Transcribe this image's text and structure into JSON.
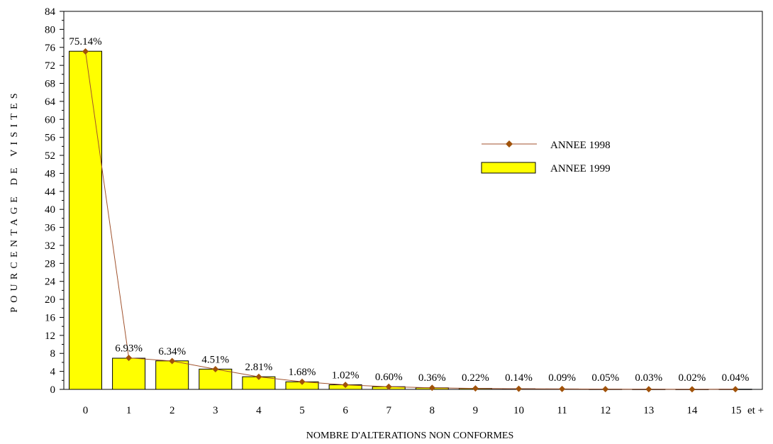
{
  "chart_data": {
    "type": "bar",
    "categories": [
      "0",
      "1",
      "2",
      "3",
      "4",
      "5",
      "6",
      "7",
      "8",
      "9",
      "10",
      "11",
      "12",
      "13",
      "14",
      "15"
    ],
    "category_suffix_last": "et +",
    "xlabel": "NOMBRE D'ALTERATIONS NON CONFORMES",
    "ylabel": "POURCENTAGE DE VISITES",
    "ylim": [
      0,
      84
    ],
    "yticks": [
      0,
      4,
      8,
      12,
      16,
      20,
      24,
      28,
      32,
      36,
      40,
      44,
      48,
      52,
      56,
      60,
      64,
      68,
      72,
      76,
      80,
      84
    ],
    "grid": false,
    "legend_position": "right-center",
    "series": [
      {
        "name": "ANNEE 1998",
        "kind": "line",
        "color": "#a0522d",
        "marker_color": "#a0520a",
        "values": [
          75.1,
          7.0,
          6.3,
          4.5,
          2.8,
          1.7,
          1.0,
          0.6,
          0.36,
          0.22,
          0.14,
          0.09,
          0.05,
          0.03,
          0.02,
          0.04
        ]
      },
      {
        "name": "ANNEE 1999",
        "kind": "bar",
        "color": "#ffff00",
        "values": [
          75.14,
          6.93,
          6.34,
          4.51,
          2.81,
          1.68,
          1.02,
          0.6,
          0.36,
          0.22,
          0.14,
          0.09,
          0.05,
          0.03,
          0.02,
          0.04
        ],
        "labels": [
          "75.14%",
          "6.93%",
          "6.34%",
          "4.51%",
          "2.81%",
          "1.68%",
          "1.02%",
          "0.60%",
          "0.36%",
          "0.22%",
          "0.14%",
          "0.09%",
          "0.05%",
          "0.03%",
          "0.02%",
          "0.04%"
        ]
      }
    ]
  }
}
